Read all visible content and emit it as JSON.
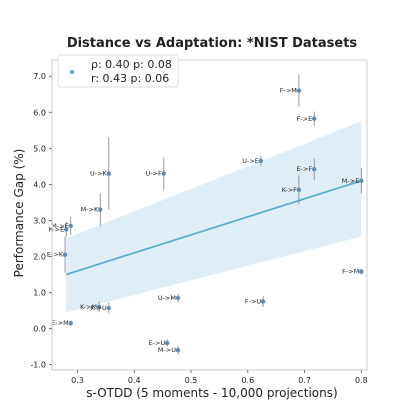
{
  "chart_data": {
    "type": "scatter",
    "title": "Distance vs Adaptation: *NIST Datasets",
    "xlabel": "s-OTDD (5 moments - 10,000 projections)",
    "ylabel": "Performance Gap (%)",
    "xlim": [
      0.255,
      0.81
    ],
    "ylim": [
      -1.15,
      7.45
    ],
    "xticks": [
      0.3,
      0.4,
      0.5,
      0.6,
      0.7,
      0.8
    ],
    "xtick_labels": [
      "0.3",
      "0.4",
      "0.5",
      "0.6",
      "0.7",
      "0.8"
    ],
    "yticks": [
      -1.0,
      0.0,
      1.0,
      2.0,
      3.0,
      4.0,
      5.0,
      6.0,
      7.0
    ],
    "ytick_labels": [
      "-1.0",
      "0.0",
      "1.0",
      "2.0",
      "3.0",
      "4.0",
      "5.0",
      "6.0",
      "7.0"
    ],
    "grid": false,
    "legend": {
      "placement": "top-left",
      "lines": [
        "ρ: 0.40  p: 0.08",
        "r: 0.43  p: 0.06"
      ]
    },
    "colors": {
      "point": "#5b8db8",
      "regression_line": "#5aaecf",
      "confidence_band": "#d4e8f3",
      "error_bar": "#7f7f7f",
      "legend_marker": "#5aa3c6"
    },
    "regression": {
      "x": [
        0.28,
        0.8
      ],
      "y": [
        1.5,
        4.1
      ],
      "band_upper": [
        2.5,
        5.75
      ],
      "band_lower": [
        0.45,
        2.55
      ]
    },
    "points": [
      {
        "label": "F->M",
        "x": 0.69,
        "y": 6.6,
        "err": 0.45
      },
      {
        "label": "F->E",
        "x": 0.717,
        "y": 5.82,
        "err": 0.2
      },
      {
        "label": "U->E",
        "x": 0.623,
        "y": 4.65,
        "err": 0.15
      },
      {
        "label": "E->F",
        "x": 0.717,
        "y": 4.42,
        "err": 0.3
      },
      {
        "label": "M->E",
        "x": 0.8,
        "y": 4.1,
        "err": 0.35
      },
      {
        "label": "K->F",
        "x": 0.69,
        "y": 3.85,
        "err": 0.4
      },
      {
        "label": "U->K",
        "x": 0.355,
        "y": 4.3,
        "err": 1.0
      },
      {
        "label": "U->F",
        "x": 0.452,
        "y": 4.3,
        "err": 0.45
      },
      {
        "label": "M->K",
        "x": 0.34,
        "y": 3.3,
        "err": 0.45
      },
      {
        "label": "M->E",
        "x": 0.288,
        "y": 2.85,
        "err": 0.25
      },
      {
        "label": "K->E",
        "x": 0.28,
        "y": 2.75,
        "err": 0.2
      },
      {
        "label": "E->K",
        "x": 0.278,
        "y": 2.05,
        "err": 0.5
      },
      {
        "label": "F->M",
        "x": 0.8,
        "y": 1.58,
        "err": 0.08
      },
      {
        "label": "U->M",
        "x": 0.477,
        "y": 0.85,
        "err": 0.12
      },
      {
        "label": "F->U",
        "x": 0.627,
        "y": 0.75,
        "err": 0.15
      },
      {
        "label": "K->M",
        "x": 0.338,
        "y": 0.6,
        "err": 0.15
      },
      {
        "label": "K->U",
        "x": 0.355,
        "y": 0.57,
        "err": 0.15
      },
      {
        "label": "E->M",
        "x": 0.288,
        "y": 0.15,
        "err": 0.08
      },
      {
        "label": "E->U",
        "x": 0.458,
        "y": -0.4,
        "err": 0.1
      },
      {
        "label": "M->U",
        "x": 0.477,
        "y": -0.6,
        "err": 0.12
      }
    ]
  }
}
